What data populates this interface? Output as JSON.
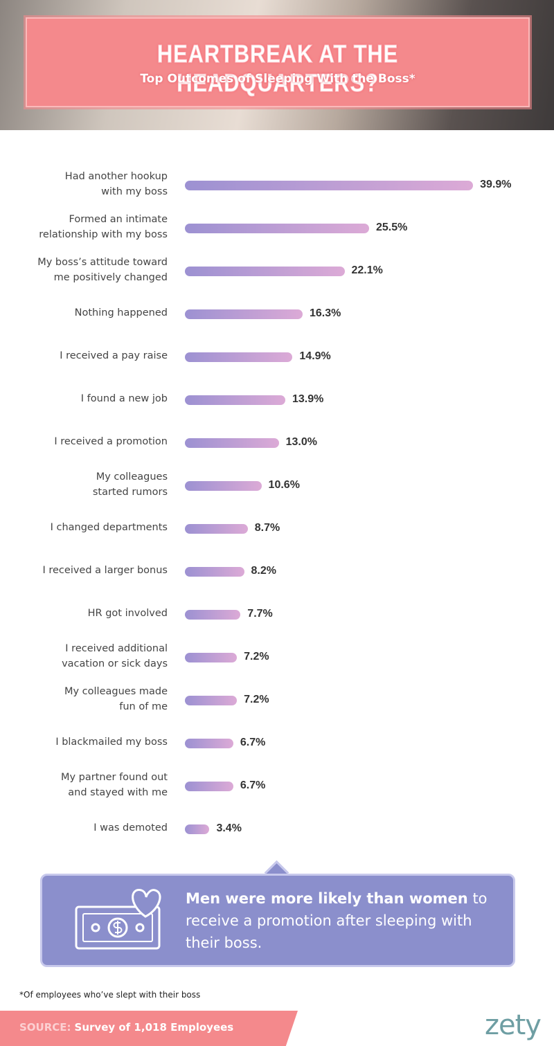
{
  "chart_data": {
    "type": "bar",
    "orientation": "horizontal",
    "title": "HEARTBREAK AT THE HEADQUARTERS?",
    "subtitle": "Top Outcomes of Sleeping With the Boss*",
    "categories": [
      "Had another hookup\nwith my boss",
      "Formed an intimate\nrelationship with my boss",
      "My boss’s attitude toward\nme positively changed",
      "Nothing happened",
      "I received a pay raise",
      "I found a new job",
      "I received a promotion",
      "My colleagues\nstarted rumors",
      "I changed departments",
      "I received a larger bonus",
      "HR got involved",
      "I received additional\nvacation or sick days",
      "My colleagues made\nfun of me",
      "I blackmailed my boss",
      "My partner found out\nand stayed with me",
      "I was demoted"
    ],
    "values": [
      39.9,
      25.5,
      22.1,
      16.3,
      14.9,
      13.9,
      13.0,
      10.6,
      8.7,
      8.2,
      7.7,
      7.2,
      7.2,
      6.7,
      6.7,
      3.4
    ],
    "value_labels": [
      "39.9%",
      "25.5%",
      "22.1%",
      "16.3%",
      "14.9%",
      "13.9%",
      "13.0%",
      "10.6%",
      "8.7%",
      "8.2%",
      "7.7%",
      "7.2%",
      "7.2%",
      "6.7%",
      "6.7%",
      "3.4%"
    ],
    "colors": [
      "#9c91d2",
      "#dcaad6"
    ]
  },
  "callout": {
    "bold": "Men were more likely than women",
    "text": "to receive a promotion after sleeping with their boss."
  },
  "footnote": "*Of employees who’ve slept with their boss",
  "source": {
    "label": "SOURCE:",
    "text": "Survey of 1,018 Employees"
  },
  "brand": "zety"
}
